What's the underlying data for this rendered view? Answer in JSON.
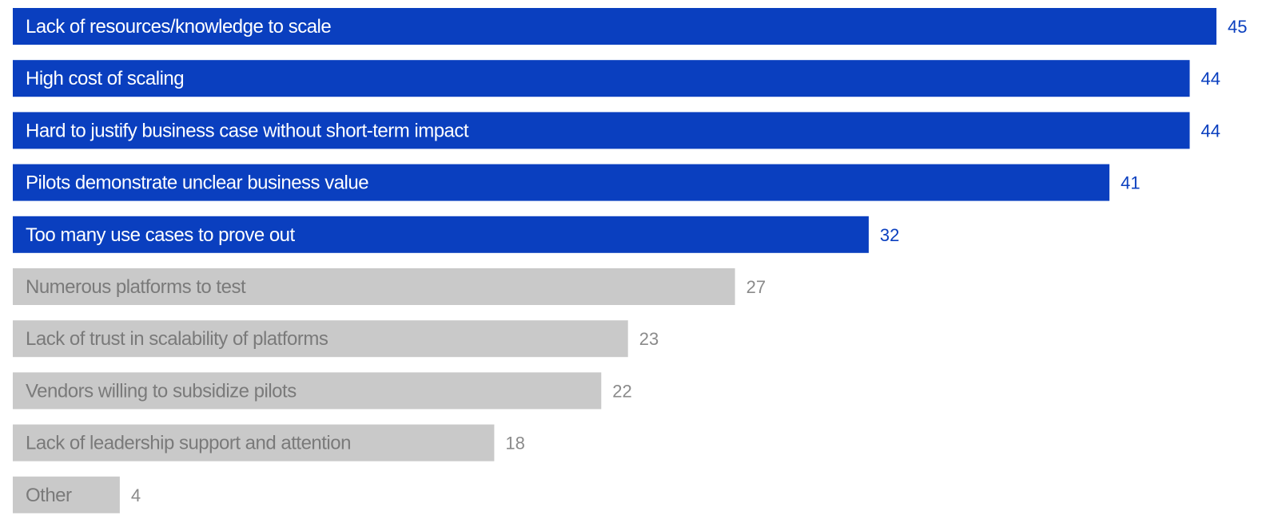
{
  "chart_data": {
    "type": "bar",
    "orientation": "horizontal",
    "categories": [
      "Lack of resources/knowledge to scale",
      "High cost of scaling",
      "Hard to justify business case without short-term impact",
      "Pilots demonstrate unclear business value",
      "Too many use cases to prove out",
      "Numerous platforms to test",
      "Lack of trust in scalability of platforms",
      "Vendors willing to subsidize pilots",
      "Lack of leadership support and attention",
      "Other"
    ],
    "values": [
      45,
      44,
      44,
      41,
      32,
      27,
      23,
      22,
      18,
      4
    ],
    "highlighted": [
      true,
      true,
      true,
      true,
      true,
      false,
      false,
      false,
      false,
      false
    ],
    "xlim": [
      0,
      45
    ],
    "grid": false,
    "legend": "none",
    "colors": {
      "highlight_bar": "#0a3fbf",
      "highlight_text": "#ffffff",
      "highlight_value": "#0a3fbf",
      "muted_bar": "#c9c9c9",
      "muted_text": "#7a7a7a",
      "muted_value": "#8a8a8a"
    }
  }
}
